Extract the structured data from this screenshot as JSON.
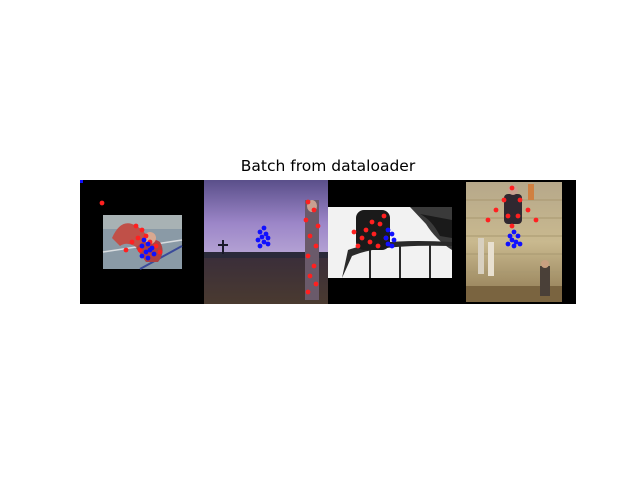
{
  "title": "Batch from dataloader",
  "colors": {
    "keypoint_pred": "#ff2020",
    "keypoint_gt": "#1010ff",
    "padding": "#000000",
    "background": "#ffffff"
  },
  "batch_size": 4
}
